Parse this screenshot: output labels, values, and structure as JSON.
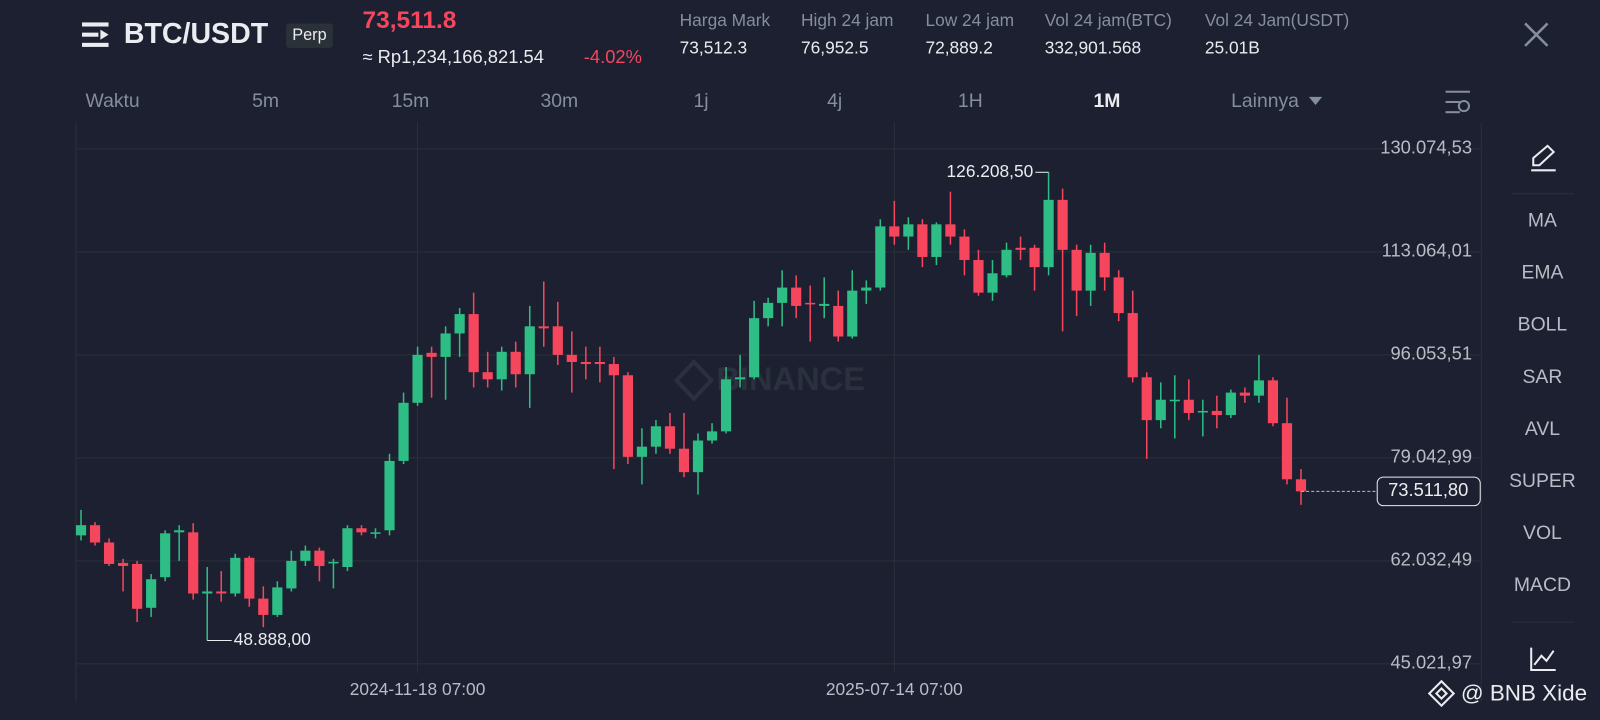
{
  "header": {
    "symbol": "BTC/USDT",
    "tag": "Perp",
    "price": "73,511.8",
    "fiat_price": "≈ Rp1,234,166,821.54",
    "change": "-4.02%",
    "stats": [
      {
        "label": "Harga Mark",
        "value": "73,512.3"
      },
      {
        "label": "High 24 jam",
        "value": "76,952.5"
      },
      {
        "label": "Low 24 jam",
        "value": "72,889.2"
      },
      {
        "label": "Vol 24 jam(BTC)",
        "value": "332,901.568"
      },
      {
        "label": "Vol 24 Jam(USDT)",
        "value": "25.01B"
      }
    ]
  },
  "tabs": {
    "items": [
      "Waktu",
      "5m",
      "15m",
      "30m",
      "1j",
      "4j",
      "1H",
      "1M",
      "Lainnya"
    ],
    "active": 7
  },
  "indicators": [
    "MA",
    "EMA",
    "BOLL",
    "SAR",
    "AVL",
    "SUPER",
    "VOL",
    "MACD"
  ],
  "watermark": "BINANCE",
  "footer": "@ BNB Xide",
  "chart_data": {
    "type": "candlestick",
    "up_color": "#2ebd85",
    "down_color": "#f6465d",
    "grid": true,
    "ylim": [
      43500,
      134450
    ],
    "yticks": [
      {
        "value": 130074.53,
        "label": "130.074,53"
      },
      {
        "value": 113064.01,
        "label": "113.064,01"
      },
      {
        "value": 96053.51,
        "label": "96.053,51"
      },
      {
        "value": 79042.99,
        "label": "79.042,99"
      },
      {
        "value": 62032.49,
        "label": "62.032,49"
      },
      {
        "value": 45021.97,
        "label": "45.021,97"
      }
    ],
    "annotations": [
      {
        "value": 126208.5,
        "label": "126.208,50"
      },
      {
        "value": 48888,
        "label": "48.888,00"
      }
    ],
    "last_price": {
      "value": 73511.8,
      "label": "73.511,80"
    },
    "categories": [
      null,
      null,
      null,
      null,
      null,
      null,
      null,
      null,
      null,
      null,
      null,
      null,
      null,
      null,
      null,
      null,
      null,
      null,
      null,
      null,
      null,
      null,
      null,
      null,
      "2024-11-18 07:00",
      null,
      null,
      null,
      null,
      null,
      null,
      null,
      null,
      null,
      null,
      null,
      null,
      null,
      null,
      null,
      null,
      null,
      null,
      null,
      null,
      null,
      null,
      null,
      null,
      null,
      null,
      null,
      null,
      null,
      null,
      null,
      null,
      null,
      "2025-07-14 07:00",
      null,
      null,
      null,
      null,
      null,
      null,
      null,
      null,
      null,
      null,
      null,
      null,
      null,
      null,
      null,
      null,
      null,
      null,
      null,
      null,
      null,
      null,
      null,
      null,
      null,
      null,
      null,
      null,
      null,
      null
    ],
    "values": [
      [
        66244,
        70454,
        65401,
        67927
      ],
      [
        67927,
        68433,
        64559,
        65065
      ],
      [
        65065,
        65738,
        61191,
        61528
      ],
      [
        61696,
        62369,
        56980,
        61191
      ],
      [
        61528,
        62033,
        51928,
        54117
      ],
      [
        54286,
        59843,
        52770,
        59001
      ],
      [
        59338,
        67086,
        58665,
        66580
      ],
      [
        66749,
        67927,
        62033,
        67086
      ],
      [
        66749,
        68264,
        55633,
        56644
      ],
      [
        56644,
        61022,
        48888,
        56980
      ],
      [
        56980,
        60349,
        55297,
        56644
      ],
      [
        56644,
        63212,
        56138,
        62538
      ],
      [
        62538,
        62875,
        54455,
        55802
      ],
      [
        55802,
        57823,
        51086,
        53107
      ],
      [
        53107,
        58665,
        52770,
        57654
      ],
      [
        57486,
        63717,
        56980,
        62033
      ],
      [
        62033,
        64559,
        61191,
        63717
      ],
      [
        63717,
        64222,
        58665,
        61191
      ],
      [
        61696,
        62369,
        57486,
        61864
      ],
      [
        61022,
        67927,
        60349,
        67422
      ],
      [
        67422,
        67927,
        66244,
        66749
      ],
      [
        66580,
        67422,
        65738,
        66749
      ],
      [
        67086,
        79717,
        66244,
        78538
      ],
      [
        78538,
        89823,
        78033,
        88138
      ],
      [
        88138,
        97401,
        87633,
        96054
      ],
      [
        96391,
        97401,
        88980,
        95717
      ],
      [
        95717,
        100770,
        88643,
        99591
      ],
      [
        99591,
        103801,
        95717,
        102790
      ],
      [
        102790,
        106327,
        90665,
        93191
      ],
      [
        93191,
        96559,
        90665,
        92012
      ],
      [
        92012,
        97401,
        90160,
        96559
      ],
      [
        96559,
        98243,
        90665,
        92854
      ],
      [
        92854,
        104138,
        87296,
        100770
      ],
      [
        100770,
        108182,
        97401,
        100433
      ],
      [
        100770,
        104812,
        94370,
        96054
      ],
      [
        96054,
        99928,
        89823,
        94875
      ],
      [
        94875,
        97401,
        92012,
        94539
      ],
      [
        94875,
        97401,
        91507,
        94539
      ],
      [
        94539,
        95717,
        77191,
        92686
      ],
      [
        92686,
        93191,
        78033,
        79212
      ],
      [
        79212,
        83928,
        74664,
        80894
      ],
      [
        80894,
        85275,
        79717,
        84265
      ],
      [
        84265,
        86454,
        79717,
        80559
      ],
      [
        80559,
        86454,
        75843,
        76685
      ],
      [
        76685,
        83086,
        72980,
        81907
      ],
      [
        81907,
        84770,
        81402,
        83423
      ],
      [
        83423,
        94033,
        83086,
        92012
      ],
      [
        92012,
        96054,
        90665,
        92349
      ],
      [
        92349,
        104980,
        92012,
        102117
      ],
      [
        102117,
        105485,
        100770,
        104643
      ],
      [
        104643,
        110033,
        100770,
        107169
      ],
      [
        107169,
        109191,
        102117,
        104138
      ],
      [
        104643,
        107506,
        98243,
        104475
      ],
      [
        104138,
        108854,
        102117,
        104475
      ],
      [
        104138,
        106664,
        98243,
        99086
      ],
      [
        99086,
        110033,
        98749,
        106664
      ],
      [
        106664,
        108349,
        104475,
        107169
      ],
      [
        107169,
        118454,
        106664,
        117275
      ],
      [
        117275,
        121485,
        114244,
        115591
      ],
      [
        115591,
        118790,
        113402,
        117612
      ],
      [
        117612,
        118454,
        110538,
        112223
      ],
      [
        112223,
        117949,
        110875,
        117612
      ],
      [
        117612,
        123001,
        114244,
        115591
      ],
      [
        115591,
        116770,
        109191,
        111717
      ],
      [
        111717,
        113402,
        105822,
        106327
      ],
      [
        106327,
        111717,
        104980,
        109528
      ],
      [
        109191,
        114581,
        108854,
        113402
      ],
      [
        113739,
        115591,
        111717,
        113402
      ],
      [
        113739,
        114244,
        106664,
        110538
      ],
      [
        110538,
        126208.5,
        109191,
        121654
      ],
      [
        121654,
        123506,
        99928,
        113402
      ],
      [
        113402,
        114244,
        102454,
        106664
      ],
      [
        106664,
        114244,
        104138,
        112897
      ],
      [
        112897,
        114581,
        106664,
        108854
      ],
      [
        108854,
        110033,
        101612,
        102959
      ],
      [
        102959,
        106664,
        91507,
        92349
      ],
      [
        92349,
        93191,
        78875,
        85275
      ],
      [
        85275,
        91507,
        83928,
        88643
      ],
      [
        88475,
        92686,
        82244,
        88643
      ],
      [
        88643,
        92012,
        85275,
        86454
      ],
      [
        86623,
        88643,
        82580,
        86791
      ],
      [
        86791,
        89318,
        83928,
        86117
      ],
      [
        86117,
        90328,
        85612,
        89823
      ],
      [
        89823,
        90665,
        88138,
        89318
      ],
      [
        89318,
        96054,
        88138,
        91844
      ],
      [
        91844,
        92349,
        84265,
        84770
      ],
      [
        84770,
        88980,
        74664,
        75506
      ],
      [
        75506,
        77191,
        71296,
        73511.8
      ]
    ]
  }
}
